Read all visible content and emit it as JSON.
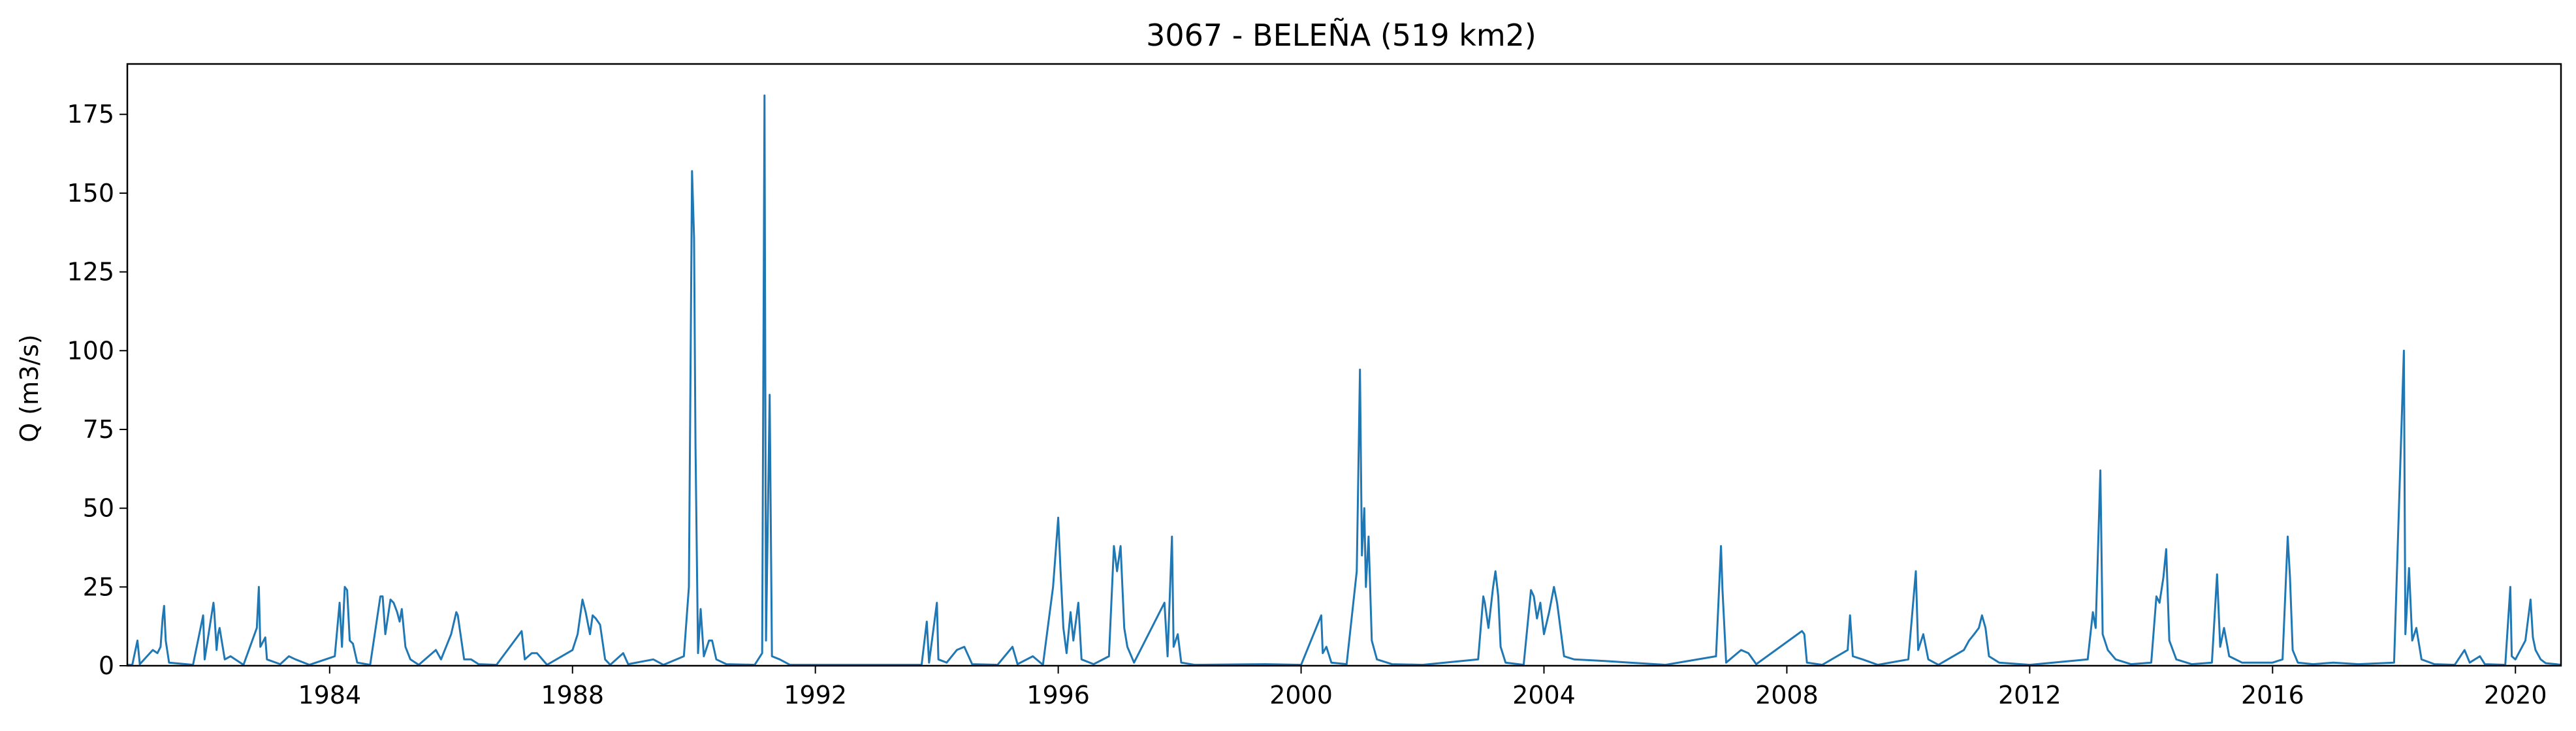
{
  "chart_data": {
    "type": "line",
    "title": "3067 - BELEÑA (519 km2)",
    "xlabel": "",
    "ylabel": "Q (m3/s)",
    "x_axis_type": "date",
    "xlim": [
      "1980-09-01",
      "2020-10-01"
    ],
    "ylim": [
      0,
      191
    ],
    "x_ticks": [
      "1984",
      "1988",
      "1992",
      "1996",
      "2000",
      "2004",
      "2008",
      "2012",
      "2016",
      "2020"
    ],
    "y_ticks": [
      0,
      25,
      50,
      75,
      100,
      125,
      150,
      175
    ],
    "grid": false,
    "legend": "none",
    "series": [
      {
        "color": "#1f77b4",
        "points": [
          [
            "1980-10-01",
            0.3
          ],
          [
            "1980-11-01",
            8
          ],
          [
            "1980-11-15",
            0.5
          ],
          [
            "1981-02-01",
            5
          ],
          [
            "1981-03-01",
            4
          ],
          [
            "1981-03-20",
            6
          ],
          [
            "1981-04-01",
            15
          ],
          [
            "1981-04-10",
            19
          ],
          [
            "1981-04-20",
            8
          ],
          [
            "1981-05-10",
            1
          ],
          [
            "1981-10-01",
            0.3
          ],
          [
            "1981-12-01",
            16
          ],
          [
            "1981-12-10",
            2
          ],
          [
            "1982-02-01",
            20
          ],
          [
            "1982-02-05",
            18
          ],
          [
            "1982-02-20",
            5
          ],
          [
            "1982-03-01",
            10
          ],
          [
            "1982-03-10",
            12
          ],
          [
            "1982-04-10",
            2
          ],
          [
            "1982-05-15",
            3
          ],
          [
            "1982-08-01",
            0.3
          ],
          [
            "1982-10-20",
            12
          ],
          [
            "1982-11-01",
            25
          ],
          [
            "1982-11-10",
            6
          ],
          [
            "1982-12-10",
            9
          ],
          [
            "1982-12-20",
            2
          ],
          [
            "1983-03-10",
            0.5
          ],
          [
            "1983-05-01",
            3
          ],
          [
            "1983-06-10",
            2
          ],
          [
            "1983-09-01",
            0.3
          ],
          [
            "1984-02-01",
            3
          ],
          [
            "1984-03-01",
            20
          ],
          [
            "1984-03-15",
            6
          ],
          [
            "1984-04-01",
            25
          ],
          [
            "1984-04-15",
            24
          ],
          [
            "1984-05-01",
            8
          ],
          [
            "1984-05-20",
            7
          ],
          [
            "1984-06-15",
            1
          ],
          [
            "1984-09-01",
            0.3
          ],
          [
            "1984-11-01",
            22
          ],
          [
            "1984-11-15",
            22
          ],
          [
            "1984-12-01",
            10
          ],
          [
            "1985-01-01",
            21
          ],
          [
            "1985-01-20",
            20
          ],
          [
            "1985-02-10",
            17
          ],
          [
            "1985-02-25",
            14
          ],
          [
            "1985-03-10",
            18
          ],
          [
            "1985-04-01",
            6
          ],
          [
            "1985-05-01",
            2
          ],
          [
            "1985-06-20",
            0.3
          ],
          [
            "1985-10-01",
            5
          ],
          [
            "1985-11-01",
            2
          ],
          [
            "1986-01-01",
            10
          ],
          [
            "1986-02-01",
            17
          ],
          [
            "1986-02-10",
            16
          ],
          [
            "1986-03-20",
            2
          ],
          [
            "1986-05-01",
            2
          ],
          [
            "1986-06-15",
            0.5
          ],
          [
            "1986-10-01",
            0.3
          ],
          [
            "1987-03-01",
            11
          ],
          [
            "1987-03-20",
            2
          ],
          [
            "1987-05-01",
            4
          ],
          [
            "1987-06-01",
            4
          ],
          [
            "1987-08-01",
            0.3
          ],
          [
            "1988-01-01",
            5
          ],
          [
            "1988-02-01",
            10
          ],
          [
            "1988-03-01",
            21
          ],
          [
            "1988-03-20",
            17
          ],
          [
            "1988-04-15",
            10
          ],
          [
            "1988-05-01",
            16
          ],
          [
            "1988-05-20",
            15
          ],
          [
            "1988-06-15",
            13
          ],
          [
            "1988-07-15",
            2
          ],
          [
            "1988-08-15",
            0.3
          ],
          [
            "1988-11-01",
            4
          ],
          [
            "1988-12-01",
            0.5
          ],
          [
            "1989-05-01",
            2
          ],
          [
            "1989-07-01",
            0.3
          ],
          [
            "1989-11-01",
            3
          ],
          [
            "1989-12-01",
            25
          ],
          [
            "1989-12-20",
            157
          ],
          [
            "1990-01-01",
            136
          ],
          [
            "1990-01-10",
            70
          ],
          [
            "1990-01-25",
            4
          ],
          [
            "1990-02-10",
            18
          ],
          [
            "1990-03-01",
            3
          ],
          [
            "1990-04-01",
            8
          ],
          [
            "1990-04-20",
            8
          ],
          [
            "1990-05-15",
            2
          ],
          [
            "1990-07-15",
            0.5
          ],
          [
            "1991-01-01",
            0.3
          ],
          [
            "1991-02-15",
            4
          ],
          [
            "1991-03-01",
            181
          ],
          [
            "1991-03-10",
            8
          ],
          [
            "1991-04-01",
            86
          ],
          [
            "1991-04-15",
            3
          ],
          [
            "1991-06-01",
            2
          ],
          [
            "1991-08-01",
            0.3
          ],
          [
            "1993-10-01",
            0.3
          ],
          [
            "1993-11-01",
            14
          ],
          [
            "1993-11-15",
            1
          ],
          [
            "1994-01-01",
            20
          ],
          [
            "1994-01-10",
            2
          ],
          [
            "1994-03-01",
            1
          ],
          [
            "1994-05-01",
            5
          ],
          [
            "1994-06-15",
            6
          ],
          [
            "1994-08-01",
            0.5
          ],
          [
            "1995-01-01",
            0.3
          ],
          [
            "1995-04-01",
            6
          ],
          [
            "1995-05-01",
            0.5
          ],
          [
            "1995-08-01",
            3
          ],
          [
            "1995-10-01",
            0.3
          ],
          [
            "1995-12-01",
            25
          ],
          [
            "1996-01-01",
            47
          ],
          [
            "1996-01-15",
            30
          ],
          [
            "1996-02-01",
            12
          ],
          [
            "1996-02-20",
            4
          ],
          [
            "1996-03-15",
            17
          ],
          [
            "1996-04-01",
            8
          ],
          [
            "1996-05-01",
            20
          ],
          [
            "1996-05-20",
            2
          ],
          [
            "1996-08-01",
            0.5
          ],
          [
            "1996-11-01",
            3
          ],
          [
            "1996-12-01",
            38
          ],
          [
            "1996-12-20",
            30
          ],
          [
            "1997-01-10",
            38
          ],
          [
            "1997-02-01",
            12
          ],
          [
            "1997-02-20",
            6
          ],
          [
            "1997-04-01",
            1
          ],
          [
            "1997-10-01",
            20
          ],
          [
            "1997-10-20",
            3
          ],
          [
            "1997-11-15",
            41
          ],
          [
            "1997-11-25",
            6
          ],
          [
            "1997-12-20",
            10
          ],
          [
            "1998-01-10",
            1
          ],
          [
            "1998-04-01",
            0.3
          ],
          [
            "1999-06-01",
            0.5
          ],
          [
            "2000-01-01",
            0.3
          ],
          [
            "2000-05-01",
            16
          ],
          [
            "2000-05-10",
            4
          ],
          [
            "2000-06-01",
            6
          ],
          [
            "2000-07-01",
            1
          ],
          [
            "2000-10-01",
            0.5
          ],
          [
            "2000-12-01",
            30
          ],
          [
            "2000-12-20",
            94
          ],
          [
            "2001-01-01",
            35
          ],
          [
            "2001-01-15",
            50
          ],
          [
            "2001-01-25",
            25
          ],
          [
            "2001-02-10",
            41
          ],
          [
            "2001-03-01",
            8
          ],
          [
            "2001-04-01",
            2
          ],
          [
            "2001-07-01",
            0.5
          ],
          [
            "2002-01-01",
            0.3
          ],
          [
            "2002-12-01",
            2
          ],
          [
            "2003-01-01",
            22
          ],
          [
            "2003-01-10",
            20
          ],
          [
            "2003-02-01",
            12
          ],
          [
            "2003-03-01",
            25
          ],
          [
            "2003-03-15",
            30
          ],
          [
            "2003-04-01",
            22
          ],
          [
            "2003-04-15",
            6
          ],
          [
            "2003-05-15",
            1
          ],
          [
            "2003-09-01",
            0.3
          ],
          [
            "2003-10-15",
            24
          ],
          [
            "2003-11-01",
            22
          ],
          [
            "2003-11-20",
            15
          ],
          [
            "2003-12-10",
            20
          ],
          [
            "2004-01-01",
            10
          ],
          [
            "2004-02-01",
            17
          ],
          [
            "2004-03-01",
            25
          ],
          [
            "2004-03-20",
            20
          ],
          [
            "2004-05-01",
            3
          ],
          [
            "2004-07-01",
            2
          ],
          [
            "2005-01-01",
            1.5
          ],
          [
            "2005-06-01",
            1
          ],
          [
            "2006-01-01",
            0.3
          ],
          [
            "2006-11-01",
            3
          ],
          [
            "2006-12-01",
            38
          ],
          [
            "2006-12-10",
            24
          ],
          [
            "2007-01-01",
            1
          ],
          [
            "2007-04-01",
            5
          ],
          [
            "2007-05-15",
            4
          ],
          [
            "2007-07-01",
            0.5
          ],
          [
            "2008-04-01",
            11
          ],
          [
            "2008-04-15",
            10
          ],
          [
            "2008-05-01",
            1
          ],
          [
            "2008-08-01",
            0.3
          ],
          [
            "2009-01-01",
            5
          ],
          [
            "2009-01-15",
            16
          ],
          [
            "2009-02-01",
            3
          ],
          [
            "2009-04-01",
            2
          ],
          [
            "2009-07-01",
            0.3
          ],
          [
            "2010-01-01",
            2
          ],
          [
            "2010-02-15",
            30
          ],
          [
            "2010-03-01",
            5
          ],
          [
            "2010-04-01",
            10
          ],
          [
            "2010-05-01",
            2
          ],
          [
            "2010-07-01",
            0.3
          ],
          [
            "2010-12-01",
            5
          ],
          [
            "2011-01-01",
            8
          ],
          [
            "2011-02-01",
            10
          ],
          [
            "2011-03-01",
            12
          ],
          [
            "2011-03-20",
            16
          ],
          [
            "2011-04-10",
            12
          ],
          [
            "2011-05-01",
            3
          ],
          [
            "2011-07-01",
            1
          ],
          [
            "2012-01-01",
            0.3
          ],
          [
            "2012-12-15",
            2
          ],
          [
            "2013-01-15",
            17
          ],
          [
            "2013-02-01",
            12
          ],
          [
            "2013-03-01",
            62
          ],
          [
            "2013-03-15",
            10
          ],
          [
            "2013-04-15",
            5
          ],
          [
            "2013-06-01",
            2
          ],
          [
            "2013-09-01",
            0.5
          ],
          [
            "2014-01-01",
            1
          ],
          [
            "2014-02-01",
            22
          ],
          [
            "2014-02-20",
            20
          ],
          [
            "2014-03-15",
            28
          ],
          [
            "2014-04-01",
            37
          ],
          [
            "2014-04-20",
            8
          ],
          [
            "2014-06-01",
            2
          ],
          [
            "2014-09-01",
            0.5
          ],
          [
            "2015-01-01",
            1
          ],
          [
            "2015-02-01",
            29
          ],
          [
            "2015-02-20",
            6
          ],
          [
            "2015-03-15",
            12
          ],
          [
            "2015-04-15",
            3
          ],
          [
            "2015-07-01",
            1
          ],
          [
            "2016-01-01",
            1
          ],
          [
            "2016-03-01",
            2
          ],
          [
            "2016-04-01",
            41
          ],
          [
            "2016-04-15",
            28
          ],
          [
            "2016-05-01",
            5
          ],
          [
            "2016-06-01",
            1
          ],
          [
            "2016-09-01",
            0.5
          ],
          [
            "2017-01-01",
            1
          ],
          [
            "2017-06-01",
            0.5
          ],
          [
            "2018-01-01",
            1
          ],
          [
            "2018-03-01",
            100
          ],
          [
            "2018-03-10",
            10
          ],
          [
            "2018-04-01",
            31
          ],
          [
            "2018-04-20",
            8
          ],
          [
            "2018-05-15",
            12
          ],
          [
            "2018-06-15",
            2
          ],
          [
            "2018-09-01",
            0.5
          ],
          [
            "2019-01-01",
            0.3
          ],
          [
            "2019-03-01",
            5
          ],
          [
            "2019-04-01",
            1
          ],
          [
            "2019-06-01",
            3
          ],
          [
            "2019-07-01",
            0.5
          ],
          [
            "2019-11-01",
            0.3
          ],
          [
            "2019-12-01",
            25
          ],
          [
            "2019-12-10",
            3
          ],
          [
            "2020-01-01",
            2
          ],
          [
            "2020-03-01",
            8
          ],
          [
            "2020-04-01",
            21
          ],
          [
            "2020-04-15",
            9
          ],
          [
            "2020-05-01",
            5
          ],
          [
            "2020-06-01",
            2
          ],
          [
            "2020-07-01",
            0.8
          ],
          [
            "2020-09-01",
            0.5
          ]
        ]
      }
    ]
  }
}
